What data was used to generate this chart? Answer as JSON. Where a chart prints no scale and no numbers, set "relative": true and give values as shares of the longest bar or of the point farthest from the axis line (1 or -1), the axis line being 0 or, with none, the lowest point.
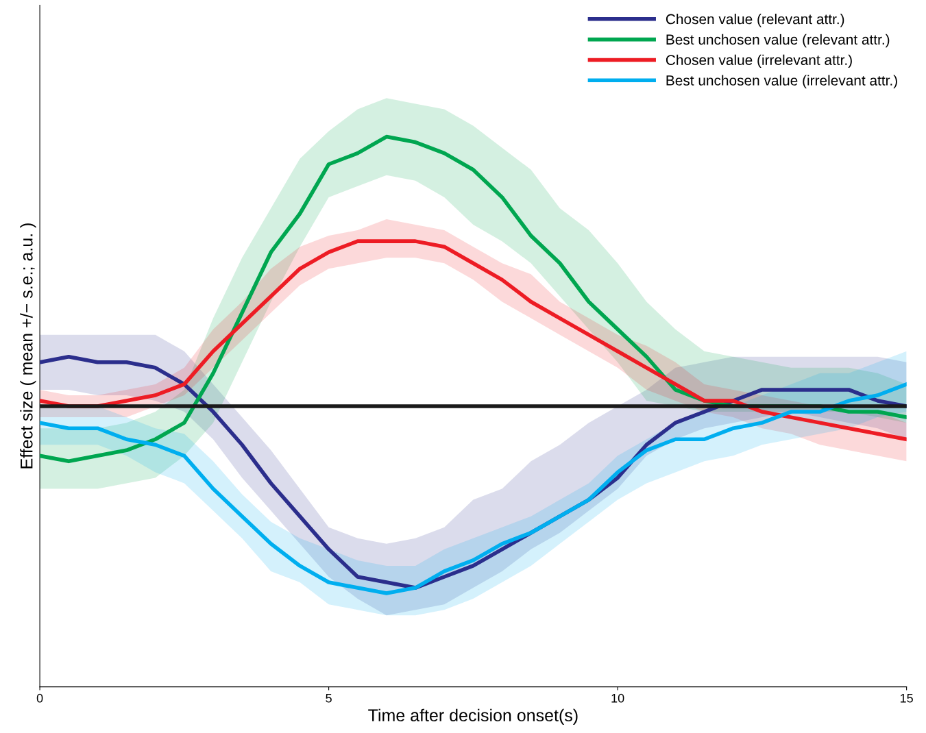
{
  "chart_data": {
    "type": "line",
    "relative": true,
    "xlabel": "Time after decision onset(s)",
    "ylabel": "Effect size ( mean +/− s.e.; a.u. )",
    "x": [
      0,
      0.5,
      1,
      1.5,
      2,
      2.5,
      3,
      3.5,
      4,
      4.5,
      5,
      5.5,
      6,
      6.5,
      7,
      7.5,
      8,
      8.5,
      9,
      9.5,
      10,
      10.5,
      11,
      11.5,
      12,
      12.5,
      13,
      13.5,
      14,
      14.5,
      15
    ],
    "xlim": [
      0,
      15
    ],
    "xticks": [
      0,
      5,
      10,
      15
    ],
    "grid": false,
    "legend": "top right",
    "marker": "none",
    "line_style": "solid",
    "ref_lines": [
      {
        "axis": "y",
        "value": 0.51,
        "color": "#1a1a1a"
      }
    ],
    "series": [
      {
        "name": "Chosen value (relevant attr.)",
        "color": "#2b2e8c",
        "values": [
          0.59,
          0.6,
          0.59,
          0.59,
          0.58,
          0.55,
          0.5,
          0.44,
          0.37,
          0.31,
          0.25,
          0.2,
          0.19,
          0.18,
          0.2,
          0.22,
          0.25,
          0.28,
          0.31,
          0.34,
          0.38,
          0.44,
          0.48,
          0.5,
          0.52,
          0.54,
          0.54,
          0.54,
          0.54,
          0.52,
          0.51
        ],
        "upper": [
          0.64,
          0.64,
          0.64,
          0.64,
          0.64,
          0.61,
          0.55,
          0.49,
          0.43,
          0.36,
          0.29,
          0.27,
          0.26,
          0.27,
          0.29,
          0.34,
          0.36,
          0.41,
          0.44,
          0.48,
          0.51,
          0.54,
          0.58,
          0.59,
          0.6,
          0.6,
          0.6,
          0.6,
          0.6,
          0.6,
          0.59
        ],
        "lower": [
          0.54,
          0.54,
          0.53,
          0.53,
          0.52,
          0.5,
          0.45,
          0.38,
          0.32,
          0.26,
          0.2,
          0.16,
          0.13,
          0.14,
          0.15,
          0.18,
          0.21,
          0.25,
          0.28,
          0.32,
          0.36,
          0.42,
          0.45,
          0.47,
          0.48,
          0.49,
          0.5,
          0.49,
          0.48,
          0.47,
          0.45
        ]
      },
      {
        "name": "Best unchosen value (relevant attr.)",
        "color": "#00a650",
        "values": [
          0.42,
          0.41,
          0.42,
          0.43,
          0.45,
          0.48,
          0.57,
          0.68,
          0.79,
          0.86,
          0.95,
          0.97,
          1.0,
          0.99,
          0.97,
          0.94,
          0.89,
          0.82,
          0.77,
          0.7,
          0.65,
          0.6,
          0.54,
          0.52,
          0.51,
          0.51,
          0.51,
          0.51,
          0.5,
          0.5,
          0.49
        ],
        "upper": [
          0.47,
          0.47,
          0.47,
          0.48,
          0.5,
          0.54,
          0.67,
          0.78,
          0.87,
          0.96,
          1.01,
          1.05,
          1.07,
          1.06,
          1.05,
          1.02,
          0.98,
          0.94,
          0.87,
          0.83,
          0.77,
          0.7,
          0.65,
          0.61,
          0.6,
          0.59,
          0.58,
          0.58,
          0.58,
          0.57,
          0.55
        ],
        "lower": [
          0.36,
          0.36,
          0.36,
          0.37,
          0.38,
          0.42,
          0.48,
          0.59,
          0.7,
          0.8,
          0.89,
          0.91,
          0.93,
          0.92,
          0.89,
          0.84,
          0.81,
          0.77,
          0.71,
          0.65,
          0.59,
          0.52,
          0.51,
          0.5,
          0.5,
          0.5,
          0.5,
          0.5,
          0.5,
          0.49,
          0.48
        ]
      },
      {
        "name": "Chosen value (irrelevant attr.)",
        "color": "#ed1c24",
        "values": [
          0.52,
          0.51,
          0.51,
          0.52,
          0.53,
          0.55,
          0.61,
          0.66,
          0.71,
          0.76,
          0.79,
          0.81,
          0.81,
          0.81,
          0.8,
          0.77,
          0.74,
          0.7,
          0.67,
          0.64,
          0.61,
          0.58,
          0.55,
          0.52,
          0.52,
          0.5,
          0.49,
          0.48,
          0.47,
          0.46,
          0.45
        ],
        "upper": [
          0.54,
          0.53,
          0.53,
          0.54,
          0.55,
          0.58,
          0.65,
          0.7,
          0.76,
          0.8,
          0.82,
          0.83,
          0.85,
          0.84,
          0.83,
          0.8,
          0.77,
          0.75,
          0.7,
          0.67,
          0.64,
          0.62,
          0.59,
          0.55,
          0.54,
          0.53,
          0.52,
          0.51,
          0.5,
          0.5,
          0.48
        ],
        "lower": [
          0.49,
          0.49,
          0.49,
          0.49,
          0.51,
          0.53,
          0.58,
          0.63,
          0.68,
          0.73,
          0.76,
          0.77,
          0.78,
          0.78,
          0.77,
          0.74,
          0.7,
          0.67,
          0.64,
          0.61,
          0.58,
          0.54,
          0.52,
          0.5,
          0.49,
          0.47,
          0.46,
          0.44,
          0.43,
          0.42,
          0.41
        ]
      },
      {
        "name": "Best unchosen value (irrelevant attr.)",
        "color": "#00aeef",
        "values": [
          0.48,
          0.47,
          0.47,
          0.45,
          0.44,
          0.42,
          0.36,
          0.31,
          0.26,
          0.22,
          0.19,
          0.18,
          0.17,
          0.18,
          0.21,
          0.23,
          0.26,
          0.28,
          0.31,
          0.34,
          0.39,
          0.43,
          0.45,
          0.45,
          0.47,
          0.48,
          0.5,
          0.5,
          0.52,
          0.53,
          0.55
        ],
        "upper": [
          0.51,
          0.51,
          0.51,
          0.49,
          0.47,
          0.46,
          0.41,
          0.35,
          0.3,
          0.27,
          0.25,
          0.23,
          0.22,
          0.22,
          0.25,
          0.27,
          0.29,
          0.31,
          0.34,
          0.37,
          0.42,
          0.45,
          0.48,
          0.5,
          0.51,
          0.53,
          0.55,
          0.57,
          0.57,
          0.59,
          0.61
        ],
        "lower": [
          0.44,
          0.44,
          0.44,
          0.42,
          0.39,
          0.37,
          0.32,
          0.27,
          0.21,
          0.19,
          0.15,
          0.14,
          0.13,
          0.13,
          0.14,
          0.16,
          0.19,
          0.22,
          0.26,
          0.3,
          0.34,
          0.37,
          0.39,
          0.41,
          0.42,
          0.44,
          0.45,
          0.46,
          0.47,
          0.49,
          0.5
        ]
      }
    ]
  }
}
